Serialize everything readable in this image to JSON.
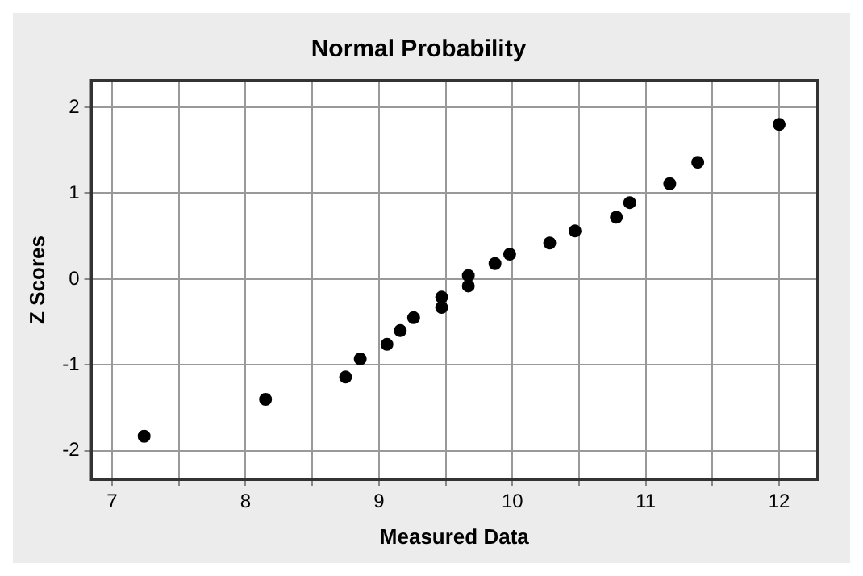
{
  "chart_data": {
    "type": "scatter",
    "title": "Normal Probability",
    "xlabel": "Measured Data",
    "ylabel": "Z Scores",
    "x": [
      7.24,
      8.15,
      8.75,
      8.86,
      9.06,
      9.16,
      9.26,
      9.47,
      9.47,
      9.67,
      9.67,
      9.87,
      9.98,
      10.28,
      10.47,
      10.78,
      10.88,
      11.18,
      11.39,
      12.0
    ],
    "values": [
      -1.83,
      -1.4,
      -1.14,
      -0.93,
      -0.76,
      -0.6,
      -0.45,
      -0.21,
      -0.33,
      0.04,
      -0.08,
      0.18,
      0.29,
      0.42,
      0.56,
      0.72,
      0.89,
      1.11,
      1.36,
      1.8
    ],
    "color": "#000000",
    "marker": "circle",
    "xlim": [
      6.84,
      12.29
    ],
    "xticks": [
      7,
      {
        "value": 7.5,
        "label": null
      },
      8,
      {
        "value": 8.5,
        "label": null
      },
      9,
      {
        "value": 9.5,
        "label": null
      },
      10,
      {
        "value": 10.5,
        "label": null
      },
      11,
      {
        "value": 11.5,
        "label": null
      },
      12
    ],
    "ylim": [
      -2.33,
      2.31
    ],
    "yticks": [
      -2,
      -1,
      0,
      1,
      2
    ],
    "grid": true
  }
}
